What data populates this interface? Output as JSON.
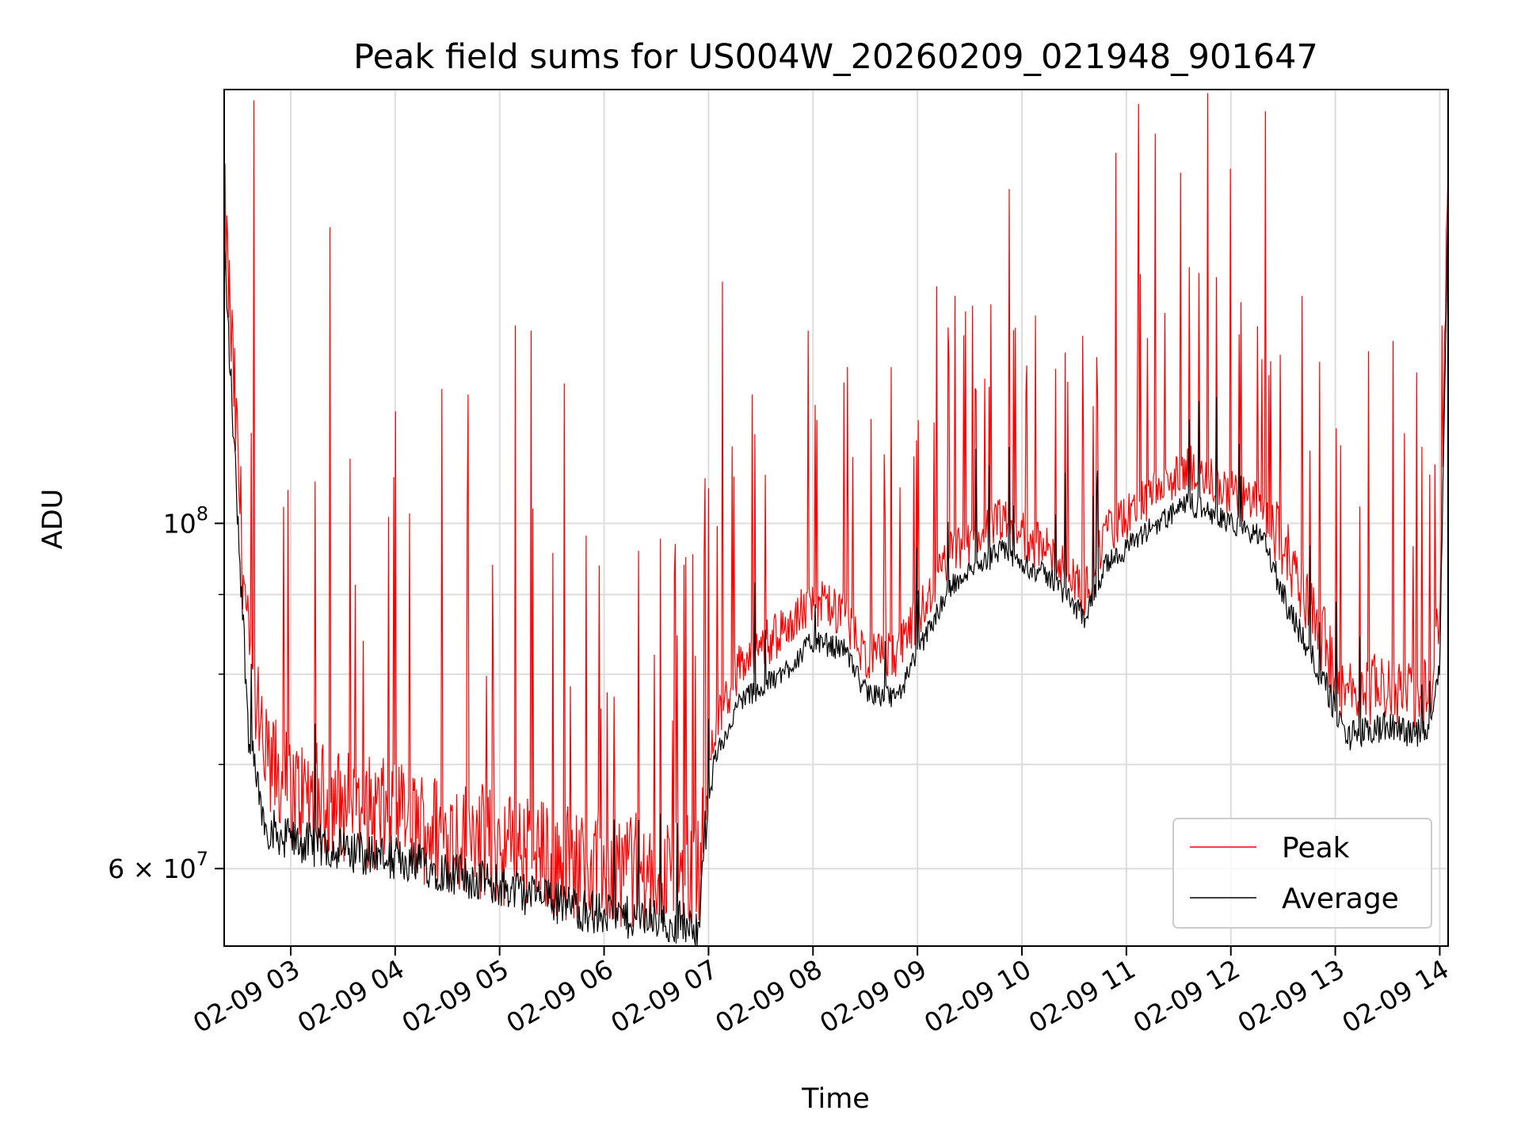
{
  "chart_data": {
    "type": "line",
    "title": "Peak field sums for US004W_20260209_021948_901647",
    "xlabel": "Time",
    "ylabel": "ADU",
    "yscale": "log",
    "ylim": [
      53500000,
      190000000
    ],
    "xlim_hours": [
      2.3633,
      14.08
    ],
    "x_tick_labels": [
      "02-09 03",
      "02-09 04",
      "02-09 05",
      "02-09 06",
      "02-09 07",
      "02-09 08",
      "02-09 09",
      "02-09 10",
      "02-09 11",
      "02-09 12",
      "02-09 13",
      "02-09 14"
    ],
    "x_tick_hours": [
      3,
      4,
      5,
      6,
      7,
      8,
      9,
      10,
      11,
      12,
      13,
      14
    ],
    "y_major_ticks": [
      {
        "value": 100000000,
        "base": "10",
        "exp": "8",
        "mant": ""
      },
      {
        "value": 60000000,
        "base": "10",
        "exp": "7",
        "mant": "6"
      }
    ],
    "y_minor_ticks": [
      70000000,
      80000000,
      90000000
    ],
    "grid": true,
    "legend_position": "lower right",
    "series": [
      {
        "name": "Peak",
        "color": "#ff0000",
        "envelope_hours": [
          2.3633,
          2.5,
          2.6,
          2.75,
          3.0,
          4.0,
          5.0,
          6.0,
          6.9,
          7.05,
          7.3,
          7.7,
          8.0,
          8.3,
          8.5,
          8.8,
          9.3,
          9.8,
          10.3,
          10.6,
          10.8,
          11.2,
          11.6,
          12.0,
          12.3,
          12.5,
          12.9,
          13.1,
          13.5,
          13.9,
          14.0,
          14.08
        ],
        "envelope_base_adu": [
          155000000,
          104000000,
          78000000,
          68000000,
          65000000,
          62500000,
          60000000,
          58000000,
          58000000,
          73000000,
          80000000,
          84000000,
          88000000,
          86000000,
          81000000,
          81000000,
          94000000,
          99000000,
          94000000,
          89000000,
          97000000,
          102000000,
          107000000,
          103000000,
          101000000,
          95000000,
          82000000,
          76000000,
          77000000,
          76000000,
          86000000,
          170000000
        ],
        "spikes_hours": [
          2.65,
          3.38,
          4.0,
          4.45,
          4.7,
          5.15,
          5.3,
          5.62,
          6.68,
          7.13,
          7.42,
          7.95,
          8.33,
          8.75,
          9.18,
          9.36,
          9.53,
          9.88,
          10.13,
          10.58,
          10.9,
          11.12,
          11.28,
          11.52,
          11.78,
          12.0,
          12.33,
          12.68,
          12.85,
          13.32,
          13.55,
          13.78,
          14.02
        ],
        "spikes_adu": [
          187000000,
          155000000,
          118000000,
          122000000,
          121000000,
          134000000,
          133000000,
          123000000,
          97000000,
          143000000,
          121000000,
          133000000,
          126000000,
          126000000,
          142000000,
          140000000,
          138000000,
          164000000,
          136000000,
          132000000,
          173000000,
          186000000,
          178000000,
          168000000,
          189000000,
          169000000,
          184000000,
          140000000,
          127000000,
          129000000,
          131000000,
          125000000,
          134000000
        ]
      },
      {
        "name": "Average",
        "color": "#000000",
        "envelope_hours": [
          2.3633,
          2.5,
          2.6,
          2.75,
          3.0,
          4.0,
          5.0,
          6.0,
          6.9,
          7.05,
          7.3,
          7.7,
          8.0,
          8.3,
          8.5,
          8.8,
          9.3,
          9.8,
          10.3,
          10.6,
          10.8,
          11.2,
          11.6,
          12.0,
          12.3,
          12.5,
          12.9,
          13.1,
          13.5,
          13.9,
          14.0,
          14.08
        ],
        "envelope_base_adu": [
          150000000,
          99000000,
          73000000,
          64000000,
          62500000,
          61000000,
          58500000,
          56000000,
          55300000,
          70000000,
          77000000,
          80000000,
          84000000,
          83000000,
          78000000,
          77000000,
          91000000,
          96000000,
          92000000,
          87000000,
          94000000,
          99000000,
          103000000,
          100000000,
          98000000,
          90000000,
          79000000,
          73000000,
          74000000,
          73000000,
          82000000,
          160000000
        ]
      }
    ]
  }
}
